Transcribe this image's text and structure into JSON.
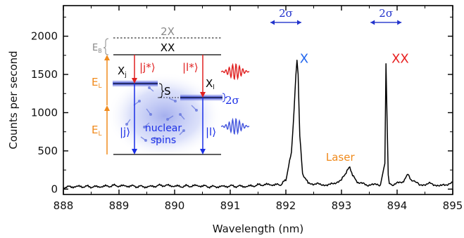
{
  "chart_data": {
    "type": "line",
    "xlabel": "Wavelength (nm)",
    "ylabel": "Counts per second",
    "xlim": [
      888,
      895
    ],
    "ylim": [
      -70,
      2400
    ],
    "xticks": [
      888,
      889,
      890,
      891,
      892,
      893,
      894,
      895
    ],
    "yticks": [
      0,
      500,
      1000,
      1500,
      2000
    ],
    "series": [
      {
        "color": "#000000",
        "x": [
          888.0,
          888.3,
          888.6,
          888.9,
          889.2,
          889.5,
          889.8,
          890.1,
          890.4,
          890.7,
          891.0,
          891.3,
          891.6,
          891.9,
          892.0,
          892.1,
          892.15,
          892.18,
          892.2,
          892.22,
          892.25,
          892.3,
          892.4,
          892.6,
          892.8,
          893.0,
          893.1,
          893.15,
          893.2,
          893.3,
          893.5,
          893.7,
          893.78,
          893.8,
          893.82,
          893.84,
          893.86,
          893.9,
          894.1,
          894.2,
          894.25,
          894.4,
          894.6,
          894.8,
          895.0
        ],
        "y": [
          25,
          35,
          30,
          45,
          40,
          30,
          50,
          35,
          45,
          30,
          40,
          35,
          60,
          55,
          120,
          480,
          1050,
          1500,
          1690,
          1500,
          700,
          200,
          80,
          60,
          55,
          120,
          240,
          290,
          180,
          80,
          55,
          60,
          350,
          1660,
          900,
          200,
          80,
          60,
          90,
          200,
          120,
          55,
          70,
          40,
          90
        ]
      }
    ],
    "peak_labels": [
      {
        "text": "X",
        "color": "#2266ee",
        "x": 892.25,
        "y": 1650
      },
      {
        "text": "XX",
        "color": "#e82020",
        "x": 893.9,
        "y": 1650
      },
      {
        "text": "Laser",
        "color": "#f08a1c",
        "x": 892.72,
        "y": 370
      }
    ],
    "linewidth_labels": [
      {
        "text": "2σ",
        "color": "#2233cc",
        "x_center": 892.0,
        "y": 2180
      },
      {
        "text": "2σ",
        "color": "#2233cc",
        "x_center": 893.8,
        "y": 2180
      }
    ]
  },
  "inset": {
    "level_2x": "2X",
    "level_xx": "XX",
    "binding_energy": "E",
    "binding_energy_sub": "B",
    "laser_energy": "E",
    "laser_energy_sub": "L",
    "exciton_left": "X",
    "exciton_left_sub": "j",
    "exciton_right": "X",
    "exciton_right_sub": "l",
    "state_j_star": "|j*⟩",
    "state_l_star": "|l*⟩",
    "state_j": "|j⟩",
    "state_l": "|l⟩",
    "splitting": "S",
    "inset_width": "2σ",
    "nuclear_spins_line1": "nuclear",
    "nuclear_spins_line2": "spins",
    "colors": {
      "red": "#e02020",
      "blue": "#1a2ee6",
      "orange": "#f08a1c",
      "gray": "#888888",
      "cloud": "#6677dd"
    }
  }
}
